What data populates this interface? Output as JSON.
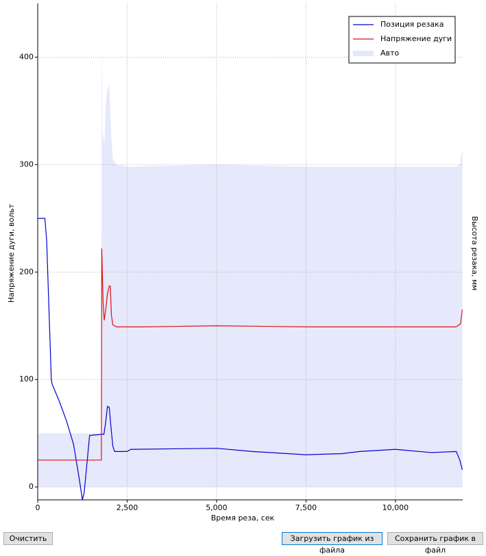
{
  "chart_data": {
    "type": "line",
    "xlabel": "Время реза, сек",
    "ylabel": "Напряжение дуги, вольт",
    "y2label": "Высота резака, мм",
    "xlim": [
      0,
      11880
    ],
    "ylim": [
      -12,
      450
    ],
    "xticks": [
      0,
      {
        "value": 2500,
        "label": "2,500"
      },
      {
        "value": 5000,
        "label": "5,000"
      },
      {
        "value": 7500,
        "label": "7,500"
      },
      {
        "value": 10000,
        "label": "10,000"
      }
    ],
    "yticks": [
      0,
      100,
      200,
      300,
      400
    ],
    "grid": true,
    "legend": "upper right",
    "series": [
      {
        "name": "Позиция резака",
        "color": "#0000cc",
        "style": "line",
        "x": [
          0,
          200,
          250,
          330,
          380,
          400,
          600,
          800,
          1000,
          1150,
          1250,
          1300,
          1400,
          1450,
          1800,
          1850,
          1900,
          1950,
          2000,
          2050,
          2100,
          2150,
          2500,
          2600,
          5000,
          6000,
          7500,
          8500,
          9000,
          10000,
          11000,
          11700,
          11800,
          11870
        ],
        "values": [
          250,
          250,
          230,
          150,
          100,
          96,
          80,
          62,
          40,
          10,
          -12,
          -5,
          30,
          48,
          49,
          49,
          60,
          75,
          74,
          55,
          38,
          33,
          33,
          35,
          36,
          33,
          30,
          31,
          33,
          35,
          32,
          33,
          25,
          16
        ]
      },
      {
        "name": "Напряжение дуги",
        "color": "#dd1111",
        "style": "line",
        "x": [
          0,
          1780,
          1790,
          1830,
          1860,
          1900,
          1950,
          2000,
          2030,
          2060,
          2100,
          2200,
          3000,
          5000,
          7500,
          10000,
          11700,
          11820,
          11870
        ],
        "values": [
          25,
          25,
          222,
          170,
          155,
          165,
          180,
          187,
          187,
          160,
          151,
          149,
          149,
          150,
          149,
          149,
          149,
          152,
          165
        ]
      },
      {
        "name": "Авто",
        "color": "#e6e8fb",
        "style": "area",
        "x": [
          0,
          1780,
          1790,
          1810,
          1870,
          1900,
          1950,
          2000,
          2050,
          2100,
          2200,
          2500,
          5000,
          7500,
          10000,
          11700,
          11800,
          11870
        ],
        "values": [
          50,
          50,
          430,
          330,
          320,
          355,
          370,
          375,
          330,
          305,
          300,
          298,
          300,
          298,
          298,
          298,
          300,
          315
        ]
      }
    ]
  },
  "buttons": [
    "Очистить",
    "Загрузить график из файла",
    "Сохранить график в файл"
  ]
}
